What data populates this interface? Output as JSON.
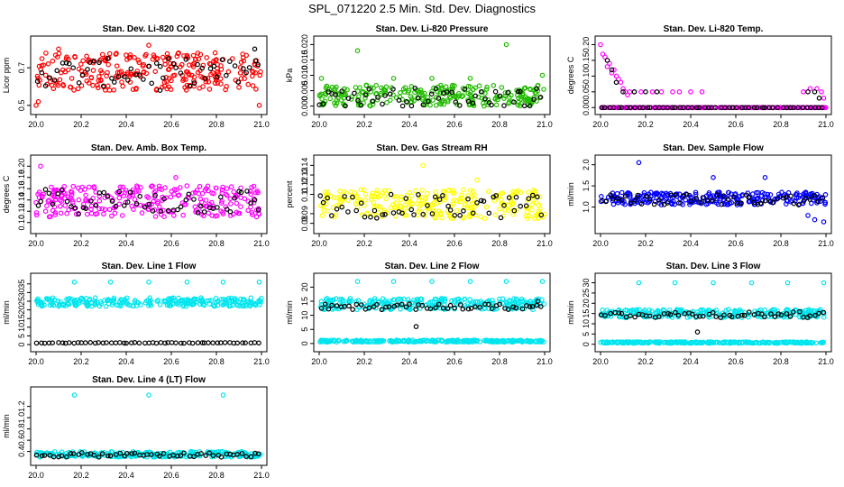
{
  "figure_title": "SPL_071220  2.5 Min. Std. Dev. Diagnostics",
  "colors": {
    "black": "#000000",
    "red": "#ff0000",
    "green": "#22bb00",
    "magenta": "#ff00ff",
    "yellow": "#ffff00",
    "blue": "#0000ff",
    "cyan": "#00e5ee"
  },
  "chart_data": [
    {
      "type": "scatter",
      "title": "Stan. Dev. Li-820 CO2",
      "ylabel": "Licor ppm",
      "xlim": [
        20.0,
        21.0
      ],
      "xticks": [
        20.0,
        20.2,
        20.4,
        20.6,
        20.8,
        21.0
      ],
      "ylim": [
        0.48,
        0.84
      ],
      "yticks": [
        0.5,
        0.7
      ],
      "series": [
        {
          "color": "#ff0000",
          "band": [
            0.58,
            0.78
          ],
          "outliers": [
            [
              20.0,
              0.5
            ],
            [
              20.01,
              0.52
            ],
            [
              20.99,
              0.5
            ],
            [
              20.5,
              0.82
            ],
            [
              20.1,
              0.8
            ]
          ]
        },
        {
          "color": "#000000",
          "band": [
            0.6,
            0.75
          ],
          "outliers": [
            [
              20.97,
              0.8
            ],
            [
              20.55,
              0.58
            ]
          ]
        }
      ]
    },
    {
      "type": "scatter",
      "title": "Stan. Dev. Li-820 Pressure",
      "ylabel": "kPa",
      "xlim": [
        20.0,
        21.0
      ],
      "xticks": [
        20.0,
        20.2,
        20.4,
        20.6,
        20.8,
        21.0
      ],
      "ylim": [
        -0.001,
        0.021
      ],
      "yticks": [
        0.0,
        0.005,
        0.01,
        0.015,
        0.02
      ],
      "series": [
        {
          "color": "#22bb00",
          "band": [
            0.0,
            0.007
          ],
          "outliers": [
            [
              20.17,
              0.018
            ],
            [
              20.83,
              0.02
            ],
            [
              20.99,
              0.01
            ],
            [
              20.01,
              0.009
            ],
            [
              20.33,
              0.009
            ],
            [
              20.5,
              0.009
            ],
            [
              20.67,
              0.009
            ]
          ]
        },
        {
          "color": "#000000",
          "band": [
            0.0,
            0.006
          ],
          "outliers": []
        }
      ]
    },
    {
      "type": "scatter",
      "title": "Stan. Dev. Li-820 Temp.",
      "ylabel": "degrees C",
      "xlim": [
        20.0,
        21.0
      ],
      "xticks": [
        20.0,
        20.2,
        20.4,
        20.6,
        20.8,
        21.0
      ],
      "ylim": [
        -0.005,
        0.21
      ],
      "yticks": [
        0.0,
        0.05,
        0.1,
        0.15,
        0.2
      ],
      "series": [
        {
          "color": "#ff00ff",
          "points": [
            [
              20.0,
              0.2
            ],
            [
              20.01,
              0.17
            ],
            [
              20.02,
              0.16
            ],
            [
              20.03,
              0.13
            ],
            [
              20.04,
              0.14
            ],
            [
              20.05,
              0.11
            ],
            [
              20.06,
              0.12
            ],
            [
              20.07,
              0.1
            ],
            [
              20.08,
              0.09
            ],
            [
              20.09,
              0.08
            ],
            [
              20.1,
              0.06
            ],
            [
              20.11,
              0.05
            ],
            [
              20.12,
              0.04
            ],
            [
              20.13,
              0.05
            ],
            [
              20.15,
              0.05
            ],
            [
              20.18,
              0.05
            ],
            [
              20.23,
              0.05
            ],
            [
              20.27,
              0.05
            ],
            [
              20.32,
              0.05
            ],
            [
              20.35,
              0.05
            ],
            [
              20.4,
              0.05
            ],
            [
              20.45,
              0.05
            ],
            [
              20.9,
              0.05
            ],
            [
              20.93,
              0.06
            ],
            [
              20.96,
              0.06
            ],
            [
              20.98,
              0.05
            ],
            [
              20.99,
              0.03
            ]
          ],
          "band": [
            0.0,
            0.0
          ]
        },
        {
          "color": "#000000",
          "points": [
            [
              20.03,
              0.15
            ],
            [
              20.05,
              0.12
            ],
            [
              20.07,
              0.08
            ],
            [
              20.1,
              0.05
            ],
            [
              20.15,
              0.05
            ],
            [
              20.2,
              0.05
            ],
            [
              20.25,
              0.05
            ],
            [
              20.92,
              0.05
            ],
            [
              20.95,
              0.05
            ],
            [
              20.97,
              0.03
            ]
          ],
          "band": [
            0.0,
            0.0
          ]
        }
      ]
    },
    {
      "type": "scatter",
      "title": "Stan. Dev. Amb. Box Temp.",
      "ylabel": "degrees C",
      "xlim": [
        20.0,
        21.0
      ],
      "xticks": [
        20.0,
        20.2,
        20.4,
        20.6,
        20.8,
        21.0
      ],
      "ylim": [
        0.09,
        0.21
      ],
      "yticks": [
        0.1,
        0.12,
        0.14,
        0.16,
        0.18,
        0.2
      ],
      "series": [
        {
          "color": "#ff00ff",
          "band": [
            0.11,
            0.165
          ],
          "outliers": [
            [
              20.02,
              0.2
            ],
            [
              20.62,
              0.18
            ]
          ]
        },
        {
          "color": "#000000",
          "band": [
            0.115,
            0.16
          ],
          "outliers": []
        }
      ]
    },
    {
      "type": "scatter",
      "title": "Stan. Dev. Gas Stream RH",
      "ylabel": "percent",
      "xlim": [
        20.0,
        21.0
      ],
      "xticks": [
        20.0,
        20.2,
        20.4,
        20.6,
        20.8,
        21.0
      ],
      "ylim": [
        0.075,
        0.145
      ],
      "yticks": [
        0.08,
        0.09,
        0.11,
        0.12,
        0.13,
        0.14
      ],
      "series": [
        {
          "color": "#ffff00",
          "band": [
            0.085,
            0.115
          ],
          "outliers": [
            [
              20.46,
              0.14
            ],
            [
              20.7,
              0.125
            ]
          ]
        },
        {
          "color": "#000000",
          "band": [
            0.085,
            0.11
          ],
          "outliers": []
        }
      ]
    },
    {
      "type": "scatter",
      "title": "Stan. Dev. Sample Flow",
      "ylabel": "ml/min",
      "xlim": [
        20.0,
        21.0
      ],
      "xticks": [
        20.0,
        20.2,
        20.4,
        20.6,
        20.8,
        21.0
      ],
      "ylim": [
        0.5,
        2.1
      ],
      "yticks": [
        1.0,
        1.5,
        2.0
      ],
      "series": [
        {
          "color": "#0000ff",
          "band": [
            1.05,
            1.35
          ],
          "outliers": [
            [
              20.17,
              2.05
            ],
            [
              20.5,
              1.7
            ],
            [
              20.73,
              1.7
            ],
            [
              20.95,
              0.7
            ],
            [
              20.92,
              0.8
            ],
            [
              20.99,
              0.65
            ]
          ]
        },
        {
          "color": "#000000",
          "band": [
            1.05,
            1.3
          ],
          "outliers": []
        }
      ]
    },
    {
      "type": "scatter",
      "title": "Stan. Dev. Line 1 Flow",
      "ylabel": "ml/min",
      "xlim": [
        20.0,
        21.0
      ],
      "xticks": [
        20.0,
        20.2,
        20.4,
        20.6,
        20.8,
        21.0
      ],
      "ylim": [
        -1,
        38
      ],
      "yticks": [
        0,
        5,
        10,
        15,
        20,
        25,
        30,
        35
      ],
      "series": [
        {
          "color": "#00e5ee",
          "band": [
            22,
            27
          ],
          "outliers": [
            [
              20.17,
              36
            ],
            [
              20.33,
              36
            ],
            [
              20.5,
              36
            ],
            [
              20.67,
              36
            ],
            [
              20.83,
              36
            ],
            [
              20.99,
              36
            ]
          ]
        },
        {
          "color": "#000000",
          "band": [
            0.8,
            1.2
          ],
          "outliers": []
        }
      ]
    },
    {
      "type": "scatter",
      "title": "Stan. Dev. Line 2 Flow",
      "ylabel": "ml/min",
      "xlim": [
        20.0,
        21.0
      ],
      "xticks": [
        20.0,
        20.2,
        20.4,
        20.6,
        20.8,
        21.0
      ],
      "ylim": [
        -1,
        23
      ],
      "yticks": [
        0,
        5,
        10,
        15,
        20
      ],
      "series": [
        {
          "color": "#00e5ee",
          "band": [
            12,
            16
          ],
          "outliers": [
            [
              20.17,
              22
            ],
            [
              20.33,
              22
            ],
            [
              20.5,
              22
            ],
            [
              20.67,
              22
            ],
            [
              20.83,
              22
            ],
            [
              20.99,
              22
            ]
          ]
        },
        {
          "color": "#00e5ee",
          "band": [
            0.5,
            1.2
          ],
          "outliers": []
        },
        {
          "color": "#000000",
          "band": [
            12,
            14
          ],
          "outliers": [
            [
              20.43,
              6
            ],
            [
              20.97,
              15
            ]
          ]
        }
      ]
    },
    {
      "type": "scatter",
      "title": "Stan. Dev. Line 3 Flow",
      "ylabel": "ml/min",
      "xlim": [
        20.0,
        21.0
      ],
      "xticks": [
        20.0,
        20.2,
        20.4,
        20.6,
        20.8,
        21.0
      ],
      "ylim": [
        -1,
        32
      ],
      "yticks": [
        0,
        5,
        10,
        15,
        20,
        25,
        30
      ],
      "series": [
        {
          "color": "#00e5ee",
          "band": [
            13,
            17
          ],
          "outliers": [
            [
              20.17,
              30
            ],
            [
              20.33,
              30
            ],
            [
              20.5,
              30
            ],
            [
              20.67,
              30
            ],
            [
              20.83,
              30
            ],
            [
              20.99,
              30
            ]
          ]
        },
        {
          "color": "#00e5ee",
          "band": [
            0.5,
            1.2
          ],
          "outliers": []
        },
        {
          "color": "#000000",
          "band": [
            13,
            16
          ],
          "outliers": [
            [
              20.43,
              6
            ]
          ]
        }
      ]
    },
    {
      "type": "scatter",
      "title": "Stan. Dev. Line 4 (LT) Flow",
      "ylabel": "ml/min",
      "xlim": [
        20.0,
        21.0
      ],
      "xticks": [
        20.0,
        20.2,
        20.4,
        20.6,
        20.8,
        21.0
      ],
      "ylim": [
        0.25,
        1.45
      ],
      "yticks": [
        0.4,
        0.6,
        0.8,
        1.0,
        1.2
      ],
      "series": [
        {
          "color": "#00e5ee",
          "band": [
            0.3,
            0.4
          ],
          "outliers": [
            [
              20.17,
              1.4
            ],
            [
              20.5,
              1.4
            ],
            [
              20.83,
              1.4
            ]
          ]
        },
        {
          "color": "#000000",
          "band": [
            0.3,
            0.38
          ],
          "outliers": []
        }
      ]
    }
  ]
}
